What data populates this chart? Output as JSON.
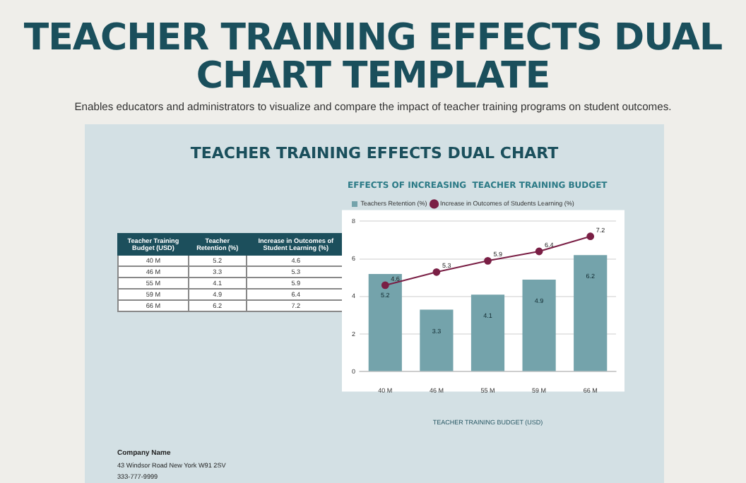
{
  "chart_data": [
    {
      "type": "other",
      "xlabel": "Teacher Training Budget (USD)",
      "data_labels": true,
      "categories": [
        "40 M",
        "46 M",
        "55 M",
        "59 M",
        "66 M"
      ],
      "series": [
        {
          "name": "Teacher Retention (%)",
          "values": [
            5.2,
            3.3,
            4.1,
            4.9,
            6.2
          ]
        },
        {
          "name": "Increase in Outcomes of Student Learning (%)",
          "values": [
            4.6,
            5.3,
            5.9,
            6.4,
            7.2
          ]
        }
      ],
      "annotations": [
        "TEACHER TRAINING EFFECTS DUAL CHART TEMPLATE",
        "Enables educators and administrators to visualize and compare the impact of teacher training programs on student outcomes.",
        "TEACHER TRAINING EFFECTS DUAL CHART",
        "Company Name",
        "43 Windsor Road New York W91 2SV",
        "333-777-9999"
      ]
    },
    {
      "type": "bar",
      "title": "EFFECTS OF INCREASING  TEACHER TRAINING BUDGET",
      "xlabel": "TEACHER TRAINING BUDGET (USD)",
      "categories": [
        "40 M",
        "46 M",
        "55 M",
        "59 M",
        "66 M"
      ],
      "series": [
        {
          "name": "Teachers Retention (%)",
          "type": "bar",
          "color": "#74a3ab",
          "values": [
            5.2,
            3.3,
            4.1,
            4.9,
            6.2
          ]
        },
        {
          "name": "Increase in Outcomes of Students Learning (%)",
          "type": "line",
          "color": "#7a1f45",
          "values": [
            4.6,
            5.3,
            5.9,
            6.4,
            7.2
          ]
        }
      ],
      "ylim": [
        0,
        8
      ],
      "yticks": [
        0,
        2,
        4,
        6,
        8
      ],
      "grid": "y",
      "legend": "top left",
      "marker": "circle",
      "data_labels": true
    }
  ]
}
